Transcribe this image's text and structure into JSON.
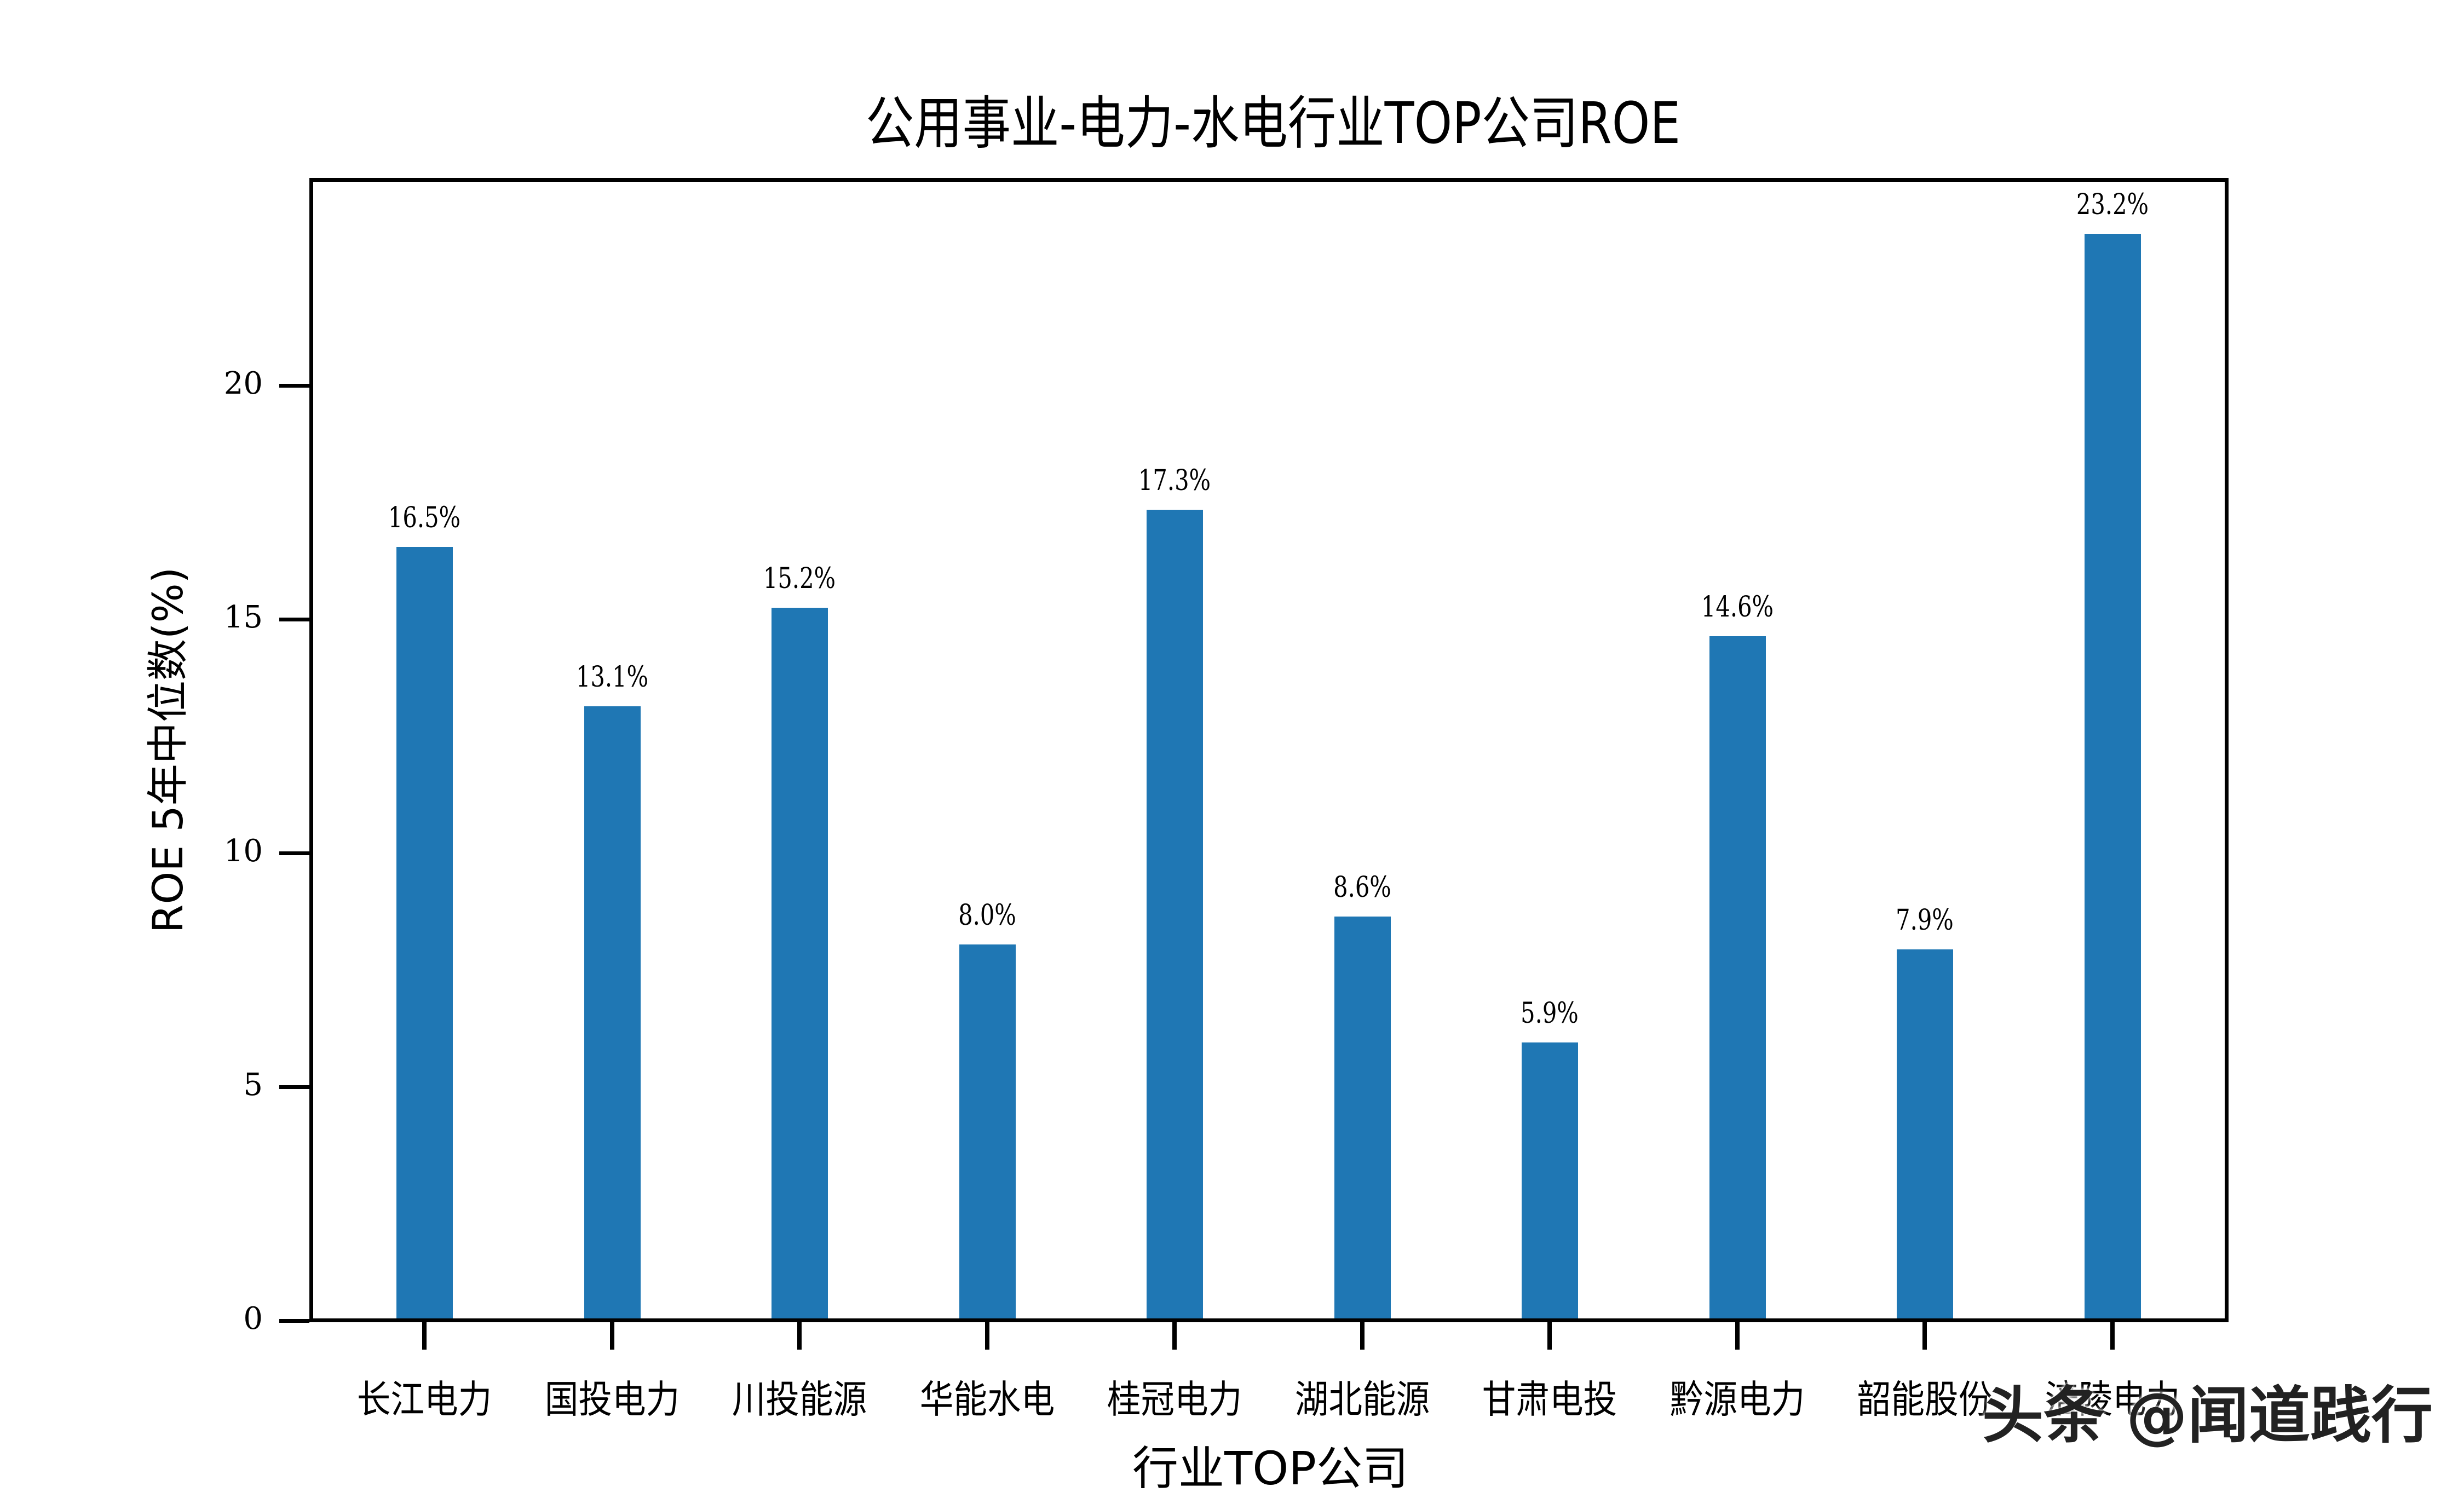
{
  "chart_data": {
    "type": "bar",
    "title": "公用事业-电力-水电行业TOP公司ROE",
    "xlabel": "行业TOP公司",
    "ylabel": "ROE 5年中位数(%)",
    "categories": [
      "长江电力",
      "国投电力",
      "川投能源",
      "华能水电",
      "桂冠电力",
      "湖北能源",
      "甘肃电投",
      "黔源电力",
      "韶能股份",
      "涪陵电力"
    ],
    "values": [
      16.5,
      13.1,
      15.2,
      8.0,
      17.3,
      8.6,
      5.9,
      14.6,
      7.9,
      23.2
    ],
    "value_labels": [
      "16.5%",
      "13.1%",
      "15.2%",
      "8.0%",
      "17.3%",
      "8.6%",
      "5.9%",
      "14.6%",
      "7.9%",
      "23.2%"
    ],
    "yticks": [
      "0",
      "5",
      "10",
      "15",
      "20"
    ],
    "ylim": [
      0,
      24.4
    ],
    "grid": false,
    "legend": null,
    "bar_color": "#1f77b4"
  },
  "watermark": "头条 @闻道践行"
}
